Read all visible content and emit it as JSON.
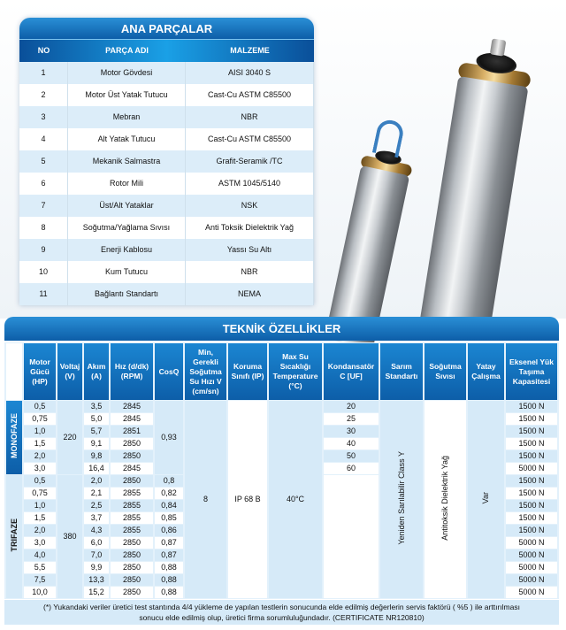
{
  "parts": {
    "title": "ANA PARÇALAR",
    "headers": [
      "NO",
      "PARÇA ADI",
      "MALZEME"
    ],
    "rows": [
      [
        "1",
        "Motor Gövdesi",
        "AISI 3040 S"
      ],
      [
        "2",
        "Motor Üst Yatak Tutucu",
        "Cast-Cu ASTM C85500"
      ],
      [
        "3",
        "Mebran",
        "NBR"
      ],
      [
        "4",
        "Alt Yatak Tutucu",
        "Cast-Cu ASTM C85500"
      ],
      [
        "5",
        "Mekanik Salmastra",
        "Grafit-Seramik /TC"
      ],
      [
        "6",
        "Rotor Mili",
        "ASTM 1045/5140"
      ],
      [
        "7",
        "Üst/Alt Yataklar",
        "NSK"
      ],
      [
        "8",
        "Soğutma/Yağlama Sıvısı",
        "Anti Toksik Dielektrik Yağ"
      ],
      [
        "9",
        "Enerji Kablosu",
        "Yassı Su Altı"
      ],
      [
        "10",
        "Kum Tutucu",
        "NBR"
      ],
      [
        "11",
        "Bağlantı Standartı",
        "NEMA"
      ]
    ]
  },
  "tech": {
    "title": "TEKNİK ÖZELLİKLER",
    "headers": [
      "Motor Gücü (HP)",
      "Voltaj (V)",
      "Akım (A)",
      "Hız (d/dk) (RPM)",
      "CosQ",
      "Min, Gerekli Soğutma Su Hızı V (cm/sn)",
      "Koruma Sınıfı (IP)",
      "Max Su Sıcaklığı Temperature (°C)",
      "Kondansatör C [UF]",
      "Sarım Standartı",
      "Soğutma Sıvısı",
      "Yatay Çalışma",
      "Eksenel Yük Taşıma Kapasitesi"
    ],
    "monofaze": {
      "label": "MONOFAZE",
      "voltage": "220",
      "cosq": "0,93",
      "rows": [
        [
          "0,5",
          "3,5",
          "2845",
          "20",
          "1500 N"
        ],
        [
          "0,75",
          "5,0",
          "2845",
          "25",
          "1500 N"
        ],
        [
          "1,0",
          "5,7",
          "2851",
          "30",
          "1500 N"
        ],
        [
          "1,5",
          "9,1",
          "2850",
          "40",
          "1500 N"
        ],
        [
          "2,0",
          "9,8",
          "2850",
          "50",
          "1500 N"
        ],
        [
          "3,0",
          "16,4",
          "2845",
          "60",
          "5000 N"
        ]
      ]
    },
    "trifaze": {
      "label": "TRIFAZE",
      "voltage": "380",
      "rows": [
        [
          "0,5",
          "2,0",
          "2850",
          "0,8",
          "1500 N"
        ],
        [
          "0,75",
          "2,1",
          "2855",
          "0,82",
          "1500 N"
        ],
        [
          "1,0",
          "2,5",
          "2855",
          "0,84",
          "1500 N"
        ],
        [
          "1,5",
          "3,7",
          "2855",
          "0,85",
          "1500 N"
        ],
        [
          "2,0",
          "4,3",
          "2855",
          "0,86",
          "1500 N"
        ],
        [
          "3,0",
          "6,0",
          "2850",
          "0,87",
          "5000 N"
        ],
        [
          "4,0",
          "7,0",
          "2850",
          "0,87",
          "5000 N"
        ],
        [
          "5,5",
          "9,9",
          "2850",
          "0,88",
          "5000 N"
        ],
        [
          "7,5",
          "13,3",
          "2850",
          "0,88",
          "5000 N"
        ],
        [
          "10,0",
          "15,2",
          "2850",
          "0,88",
          "5000 N"
        ]
      ]
    },
    "shared": {
      "min_cooling": "8",
      "protection": "IP 68 B",
      "max_temp": "40°C",
      "winding": "Yeniden Sarılabilir Class Y",
      "coolant": "Antitoksik Dielektrik Yağ",
      "horizontal": "Var"
    },
    "footnote_line1": "(*) Yukandaki veriler üretici test stantında 4/4 yükleme de yapılan testlerin sonucunda elde edilmiş değerlerin  servis faktörü ( %5 ) ile arttırılması",
    "footnote_line2": "sonucu elde edilmiş olup, üretici firma sorumluluğundadır. (CERTIFICATE NR120810)"
  }
}
